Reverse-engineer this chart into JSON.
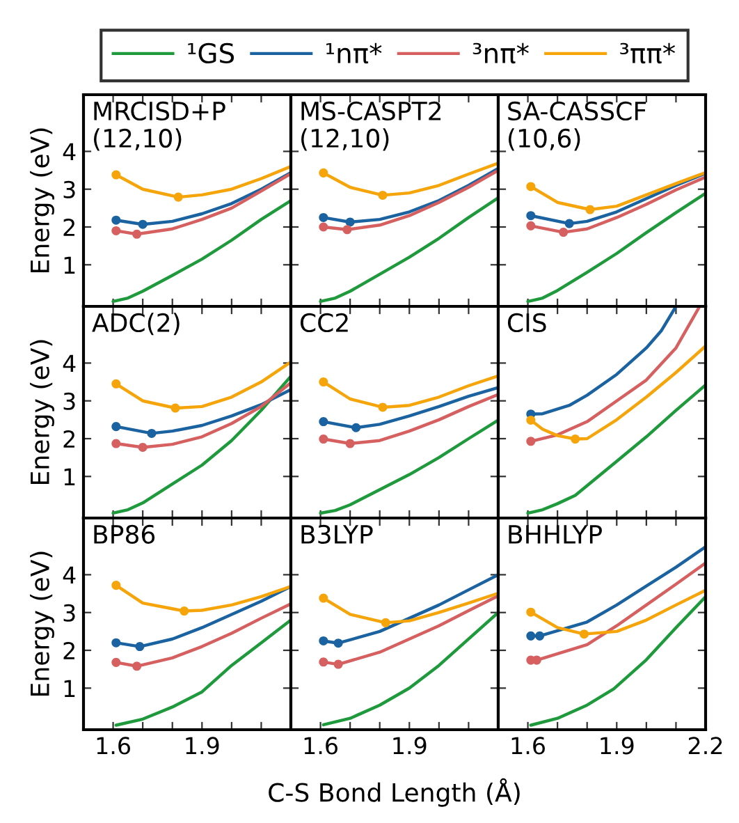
{
  "chart_data": [
    {
      "type": "line",
      "title": "MRCISD+P\n(12,10)",
      "ylabel": "Energy (eV)",
      "legend": "top",
      "xlim": [
        1.5,
        2.2
      ],
      "ylim": [
        -0.1,
        5.5
      ],
      "xticks": [
        1.6,
        {
          "value": 1.7,
          "label": null
        },
        {
          "value": 1.8,
          "label": null
        },
        1.9,
        {
          "value": 2.0,
          "label": null
        },
        {
          "value": 2.1,
          "label": null
        },
        {
          "value": 2.2,
          "label": null
        }
      ],
      "yticks": [
        1,
        2,
        3,
        4
      ],
      "tick_labels": "y",
      "series": [
        {
          "name": "¹GS",
          "color": "#1e9a3c",
          "x": [
            1.6,
            1.65,
            1.7,
            1.8,
            1.9,
            2.0,
            2.1,
            2.2
          ],
          "values": [
            0.03,
            0.12,
            0.3,
            0.72,
            1.15,
            1.65,
            2.2,
            2.7
          ]
        },
        {
          "name": "¹nπ*",
          "color": "#1a62a0",
          "x": [
            1.61,
            1.7,
            1.8,
            1.9,
            2.0,
            2.1,
            2.2
          ],
          "values": [
            2.18,
            2.07,
            2.15,
            2.35,
            2.62,
            3.0,
            3.44
          ]
        },
        {
          "name": "³nπ*",
          "color": "#d65f5f",
          "x": [
            1.61,
            1.68,
            1.8,
            1.9,
            2.0,
            2.1,
            2.2
          ],
          "values": [
            1.9,
            1.81,
            1.95,
            2.2,
            2.5,
            2.95,
            3.41
          ]
        },
        {
          "name": "³ππ*",
          "color": "#f5a50a",
          "x": [
            1.61,
            1.7,
            1.82,
            1.9,
            2.0,
            2.1,
            2.2
          ],
          "values": [
            3.38,
            3.0,
            2.79,
            2.85,
            3.0,
            3.28,
            3.6
          ]
        },
        {
          "type": "scatter",
          "color": "#1a62a0",
          "x": [
            1.61,
            1.7
          ],
          "values": [
            2.18,
            2.07
          ]
        },
        {
          "type": "scatter",
          "color": "#d65f5f",
          "x": [
            1.61,
            1.68
          ],
          "values": [
            1.9,
            1.81
          ]
        },
        {
          "type": "scatter",
          "color": "#f5a50a",
          "x": [
            1.61,
            1.82
          ],
          "values": [
            3.38,
            2.79
          ]
        }
      ]
    },
    {
      "type": "line",
      "title": "MS-CASPT2\n(12,10)",
      "xlim": [
        1.5,
        2.2
      ],
      "ylim": [
        -0.1,
        5.5
      ],
      "xticks": [
        1.6,
        {
          "value": 1.7,
          "label": null
        },
        {
          "value": 1.8,
          "label": null
        },
        1.9,
        {
          "value": 2.0,
          "label": null
        },
        {
          "value": 2.1,
          "label": null
        },
        {
          "value": 2.2,
          "label": null
        }
      ],
      "yticks": [
        1,
        2,
        3,
        4
      ],
      "tick_labels": false,
      "series": [
        {
          "color": "#1e9a3c",
          "x": [
            1.6,
            1.65,
            1.7,
            1.8,
            1.9,
            2.0,
            2.1,
            2.2
          ],
          "values": [
            0.03,
            0.12,
            0.3,
            0.75,
            1.2,
            1.7,
            2.25,
            2.77
          ]
        },
        {
          "color": "#1a62a0",
          "x": [
            1.61,
            1.7,
            1.8,
            1.9,
            2.0,
            2.1,
            2.2
          ],
          "values": [
            2.25,
            2.13,
            2.2,
            2.4,
            2.7,
            3.1,
            3.55
          ]
        },
        {
          "color": "#d65f5f",
          "x": [
            1.61,
            1.69,
            1.8,
            1.9,
            2.0,
            2.1,
            2.2
          ],
          "values": [
            2.0,
            1.93,
            2.05,
            2.3,
            2.65,
            3.05,
            3.5
          ]
        },
        {
          "color": "#f5a50a",
          "x": [
            1.61,
            1.7,
            1.81,
            1.9,
            2.0,
            2.1,
            2.2
          ],
          "values": [
            3.43,
            3.05,
            2.84,
            2.9,
            3.1,
            3.4,
            3.69
          ]
        },
        {
          "type": "scatter",
          "color": "#1a62a0",
          "x": [
            1.61,
            1.7
          ],
          "values": [
            2.25,
            2.13
          ]
        },
        {
          "type": "scatter",
          "color": "#d65f5f",
          "x": [
            1.61,
            1.69
          ],
          "values": [
            2.0,
            1.93
          ]
        },
        {
          "type": "scatter",
          "color": "#f5a50a",
          "x": [
            1.61,
            1.81
          ],
          "values": [
            3.43,
            2.84
          ]
        }
      ]
    },
    {
      "type": "line",
      "title": "SA-CASSCF\n(10,6)",
      "xlim": [
        1.5,
        2.2
      ],
      "ylim": [
        -0.1,
        5.5
      ],
      "xticks": [
        1.6,
        {
          "value": 1.7,
          "label": null
        },
        {
          "value": 1.8,
          "label": null
        },
        1.9,
        {
          "value": 2.0,
          "label": null
        },
        {
          "value": 2.1,
          "label": null
        },
        {
          "value": 2.2,
          "label": null
        }
      ],
      "yticks": [
        1,
        2,
        3,
        4
      ],
      "tick_labels": false,
      "series": [
        {
          "color": "#1e9a3c",
          "x": [
            1.6,
            1.65,
            1.7,
            1.8,
            1.9,
            2.0,
            2.1,
            2.2
          ],
          "values": [
            0.03,
            0.12,
            0.32,
            0.8,
            1.3,
            1.85,
            2.38,
            2.89
          ]
        },
        {
          "color": "#1a62a0",
          "x": [
            1.61,
            1.74,
            1.8,
            1.9,
            2.0,
            2.1,
            2.2
          ],
          "values": [
            2.3,
            2.09,
            2.15,
            2.4,
            2.75,
            3.1,
            3.42
          ]
        },
        {
          "color": "#d65f5f",
          "x": [
            1.61,
            1.72,
            1.8,
            1.9,
            2.0,
            2.1,
            2.2
          ],
          "values": [
            2.03,
            1.86,
            1.95,
            2.25,
            2.6,
            2.98,
            3.32
          ]
        },
        {
          "color": "#f5a50a",
          "x": [
            1.61,
            1.7,
            1.81,
            1.9,
            2.0,
            2.1,
            2.2
          ],
          "values": [
            3.07,
            2.65,
            2.46,
            2.55,
            2.85,
            3.15,
            3.44
          ]
        },
        {
          "type": "scatter",
          "color": "#1a62a0",
          "x": [
            1.61,
            1.74
          ],
          "values": [
            2.3,
            2.09
          ]
        },
        {
          "type": "scatter",
          "color": "#d65f5f",
          "x": [
            1.61,
            1.72
          ],
          "values": [
            2.03,
            1.86
          ]
        },
        {
          "type": "scatter",
          "color": "#f5a50a",
          "x": [
            1.61,
            1.81
          ],
          "values": [
            3.07,
            2.46
          ]
        }
      ]
    },
    {
      "type": "line",
      "title": "ADC(2)",
      "ylabel": "Energy (eV)",
      "xlim": [
        1.5,
        2.2
      ],
      "ylim": [
        -0.1,
        5.5
      ],
      "xticks": [
        1.6,
        {
          "value": 1.7,
          "label": null
        },
        {
          "value": 1.8,
          "label": null
        },
        1.9,
        {
          "value": 2.0,
          "label": null
        },
        {
          "value": 2.1,
          "label": null
        },
        {
          "value": 2.2,
          "label": null
        }
      ],
      "yticks": [
        1,
        2,
        3,
        4
      ],
      "tick_labels": "y",
      "series": [
        {
          "color": "#1e9a3c",
          "x": [
            1.6,
            1.65,
            1.7,
            1.8,
            1.9,
            2.0,
            2.1,
            2.2
          ],
          "values": [
            0.03,
            0.12,
            0.3,
            0.8,
            1.3,
            1.95,
            2.75,
            3.65
          ]
        },
        {
          "color": "#1a62a0",
          "x": [
            1.61,
            1.73,
            1.8,
            1.9,
            2.0,
            2.1,
            2.2
          ],
          "values": [
            2.32,
            2.14,
            2.2,
            2.35,
            2.6,
            2.9,
            3.3
          ]
        },
        {
          "color": "#d65f5f",
          "x": [
            1.61,
            1.7,
            1.8,
            1.9,
            2.0,
            2.1,
            2.2
          ],
          "values": [
            1.87,
            1.77,
            1.85,
            2.05,
            2.4,
            2.85,
            3.48
          ]
        },
        {
          "color": "#f5a50a",
          "x": [
            1.61,
            1.7,
            1.81,
            1.9,
            2.0,
            2.1,
            2.2
          ],
          "values": [
            3.45,
            3.0,
            2.81,
            2.85,
            3.1,
            3.5,
            4.03
          ]
        },
        {
          "type": "scatter",
          "color": "#1a62a0",
          "x": [
            1.61,
            1.73
          ],
          "values": [
            2.32,
            2.14
          ]
        },
        {
          "type": "scatter",
          "color": "#d65f5f",
          "x": [
            1.61,
            1.7
          ],
          "values": [
            1.87,
            1.77
          ]
        },
        {
          "type": "scatter",
          "color": "#f5a50a",
          "x": [
            1.61,
            1.81
          ],
          "values": [
            3.45,
            2.81
          ]
        }
      ]
    },
    {
      "type": "line",
      "title": "CC2",
      "xlim": [
        1.5,
        2.2
      ],
      "ylim": [
        -0.1,
        5.5
      ],
      "xticks": [
        1.6,
        {
          "value": 1.7,
          "label": null
        },
        {
          "value": 1.8,
          "label": null
        },
        1.9,
        {
          "value": 2.0,
          "label": null
        },
        {
          "value": 2.1,
          "label": null
        },
        {
          "value": 2.2,
          "label": null
        }
      ],
      "yticks": [
        1,
        2,
        3,
        4
      ],
      "tick_labels": false,
      "series": [
        {
          "color": "#1e9a3c",
          "x": [
            1.6,
            1.65,
            1.7,
            1.8,
            1.9,
            2.0,
            2.1,
            2.2
          ],
          "values": [
            0.03,
            0.1,
            0.25,
            0.65,
            1.05,
            1.5,
            2.0,
            2.49
          ]
        },
        {
          "color": "#1a62a0",
          "x": [
            1.61,
            1.72,
            1.8,
            1.9,
            2.0,
            2.1,
            2.2
          ],
          "values": [
            2.45,
            2.29,
            2.38,
            2.6,
            2.85,
            3.12,
            3.35
          ]
        },
        {
          "color": "#d65f5f",
          "x": [
            1.61,
            1.7,
            1.8,
            1.9,
            2.0,
            2.1,
            2.2
          ],
          "values": [
            1.99,
            1.87,
            1.95,
            2.2,
            2.5,
            2.85,
            3.17
          ]
        },
        {
          "color": "#f5a50a",
          "x": [
            1.61,
            1.7,
            1.81,
            1.9,
            2.0,
            2.1,
            2.2
          ],
          "values": [
            3.5,
            3.05,
            2.83,
            2.88,
            3.1,
            3.4,
            3.66
          ]
        },
        {
          "type": "scatter",
          "color": "#1a62a0",
          "x": [
            1.61,
            1.72
          ],
          "values": [
            2.45,
            2.29
          ]
        },
        {
          "type": "scatter",
          "color": "#d65f5f",
          "x": [
            1.61,
            1.7
          ],
          "values": [
            1.99,
            1.87
          ]
        },
        {
          "type": "scatter",
          "color": "#f5a50a",
          "x": [
            1.61,
            1.81
          ],
          "values": [
            3.5,
            2.83
          ]
        }
      ]
    },
    {
      "type": "line",
      "title": "CIS",
      "xlim": [
        1.5,
        2.2
      ],
      "ylim": [
        -0.1,
        5.5
      ],
      "xticks": [
        1.6,
        {
          "value": 1.7,
          "label": null
        },
        {
          "value": 1.8,
          "label": null
        },
        1.9,
        {
          "value": 2.0,
          "label": null
        },
        {
          "value": 2.1,
          "label": null
        },
        {
          "value": 2.2,
          "label": null
        }
      ],
      "yticks": [
        1,
        2,
        3,
        4
      ],
      "tick_labels": false,
      "series": [
        {
          "color": "#1e9a3c",
          "x": [
            1.6,
            1.65,
            1.7,
            1.76,
            1.9,
            2.0,
            2.1,
            2.2
          ],
          "values": [
            0.03,
            0.12,
            0.28,
            0.5,
            1.4,
            2.05,
            2.75,
            3.42
          ]
        },
        {
          "color": "#1a62a0",
          "x": [
            1.61,
            1.65,
            1.74,
            1.8,
            1.9,
            2.0,
            2.05,
            2.1
          ],
          "values": [
            2.65,
            2.66,
            2.88,
            3.15,
            3.7,
            4.4,
            4.85,
            5.5
          ]
        },
        {
          "color": "#d65f5f",
          "x": [
            1.61,
            1.7,
            1.8,
            1.9,
            2.0,
            2.1,
            2.18
          ],
          "values": [
            1.93,
            2.1,
            2.45,
            3.0,
            3.55,
            4.4,
            5.5
          ]
        },
        {
          "color": "#f5a50a",
          "x": [
            1.61,
            1.65,
            1.7,
            1.76,
            1.8,
            1.9,
            2.0,
            2.1,
            2.2
          ],
          "values": [
            2.49,
            2.25,
            2.08,
            1.99,
            2.0,
            2.5,
            3.1,
            3.75,
            4.45
          ]
        },
        {
          "type": "scatter",
          "color": "#1a62a0",
          "x": [
            1.61
          ],
          "values": [
            2.65
          ]
        },
        {
          "type": "scatter",
          "color": "#d65f5f",
          "x": [
            1.61
          ],
          "values": [
            1.93
          ]
        },
        {
          "type": "scatter",
          "color": "#f5a50a",
          "x": [
            1.61,
            1.76
          ],
          "values": [
            2.49,
            1.99
          ]
        }
      ]
    },
    {
      "type": "line",
      "title": "BP86",
      "ylabel": "Energy (eV)",
      "xlim": [
        1.5,
        2.2
      ],
      "ylim": [
        -0.1,
        5.5
      ],
      "xticks": [
        1.6,
        {
          "value": 1.7,
          "label": null
        },
        {
          "value": 1.8,
          "label": null
        },
        1.9,
        {
          "value": 2.0,
          "label": null
        },
        {
          "value": 2.1,
          "label": null
        },
        {
          "value": 2.2,
          "label": null
        }
      ],
      "yticks": [
        1,
        2,
        3,
        4
      ],
      "series": [
        {
          "color": "#1e9a3c",
          "x": [
            1.61,
            1.7,
            1.8,
            1.9,
            2.0,
            2.1,
            2.2
          ],
          "values": [
            0.02,
            0.18,
            0.5,
            0.9,
            1.6,
            2.2,
            2.8
          ]
        },
        {
          "color": "#1a62a0",
          "x": [
            1.61,
            1.69,
            1.8,
            1.9,
            2.0,
            2.1,
            2.2
          ],
          "values": [
            2.2,
            2.1,
            2.3,
            2.6,
            2.95,
            3.3,
            3.69
          ]
        },
        {
          "color": "#d65f5f",
          "x": [
            1.61,
            1.68,
            1.8,
            1.9,
            2.0,
            2.1,
            2.2
          ],
          "values": [
            1.68,
            1.58,
            1.8,
            2.1,
            2.45,
            2.85,
            3.23
          ]
        },
        {
          "color": "#f5a50a",
          "x": [
            1.61,
            1.7,
            1.84,
            1.9,
            2.0,
            2.1,
            2.2
          ],
          "values": [
            3.72,
            3.25,
            3.04,
            3.06,
            3.2,
            3.42,
            3.69
          ]
        },
        {
          "type": "scatter",
          "color": "#1a62a0",
          "x": [
            1.61,
            1.69
          ],
          "values": [
            2.2,
            2.1
          ]
        },
        {
          "type": "scatter",
          "color": "#d65f5f",
          "x": [
            1.61,
            1.68
          ],
          "values": [
            1.68,
            1.58
          ]
        },
        {
          "type": "scatter",
          "color": "#f5a50a",
          "x": [
            1.61,
            1.84
          ],
          "values": [
            3.72,
            3.04
          ]
        }
      ]
    },
    {
      "type": "line",
      "title": "B3LYP",
      "xlabel": "C-S Bond Length (Å)",
      "xlim": [
        1.5,
        2.2
      ],
      "ylim": [
        -0.1,
        5.5
      ],
      "xticks": [
        1.6,
        {
          "value": 1.7,
          "label": null
        },
        {
          "value": 1.8,
          "label": null
        },
        1.9,
        {
          "value": 2.0,
          "label": null
        },
        {
          "value": 2.1,
          "label": null
        },
        {
          "value": 2.2,
          "label": null
        }
      ],
      "yticks": [
        1,
        2,
        3,
        4
      ],
      "tick_labels": "x",
      "series": [
        {
          "color": "#1e9a3c",
          "x": [
            1.61,
            1.7,
            1.8,
            1.9,
            2.0,
            2.1,
            2.2
          ],
          "values": [
            0.03,
            0.2,
            0.55,
            1.0,
            1.6,
            2.3,
            3.0
          ]
        },
        {
          "color": "#1a62a0",
          "x": [
            1.61,
            1.66,
            1.8,
            1.9,
            2.0,
            2.1,
            2.2
          ],
          "values": [
            2.25,
            2.19,
            2.5,
            2.85,
            3.2,
            3.6,
            4.0
          ]
        },
        {
          "color": "#d65f5f",
          "x": [
            1.61,
            1.66,
            1.8,
            1.9,
            2.0,
            2.1,
            2.2
          ],
          "values": [
            1.69,
            1.63,
            1.95,
            2.3,
            2.65,
            3.05,
            3.44
          ]
        },
        {
          "color": "#f5a50a",
          "x": [
            1.61,
            1.7,
            1.82,
            1.9,
            2.0,
            2.1,
            2.2
          ],
          "values": [
            3.38,
            2.95,
            2.73,
            2.78,
            3.0,
            3.25,
            3.51
          ]
        },
        {
          "type": "scatter",
          "color": "#1a62a0",
          "x": [
            1.61,
            1.66
          ],
          "values": [
            2.25,
            2.19
          ]
        },
        {
          "type": "scatter",
          "color": "#d65f5f",
          "x": [
            1.61,
            1.66
          ],
          "values": [
            1.69,
            1.63
          ]
        },
        {
          "type": "scatter",
          "color": "#f5a50a",
          "x": [
            1.61,
            1.82
          ],
          "values": [
            3.38,
            2.73
          ]
        }
      ]
    },
    {
      "type": "line",
      "title": "BHHLYP",
      "xlim": [
        1.5,
        2.2
      ],
      "ylim": [
        -0.1,
        5.5
      ],
      "xticks": [
        1.6,
        {
          "value": 1.7,
          "label": null
        },
        {
          "value": 1.8,
          "label": null
        },
        1.9,
        {
          "value": 2.0,
          "label": null
        },
        {
          "value": 2.1,
          "label": null
        },
        2.2
      ],
      "yticks": [
        1,
        2,
        3,
        4
      ],
      "tick_labels": "x",
      "series": [
        {
          "color": "#1e9a3c",
          "x": [
            1.61,
            1.7,
            1.8,
            1.89,
            2.0,
            2.1,
            2.2
          ],
          "values": [
            0.02,
            0.2,
            0.55,
            0.98,
            1.75,
            2.6,
            3.42
          ]
        },
        {
          "color": "#1a62a0",
          "x": [
            1.61,
            1.64,
            1.8,
            1.9,
            2.0,
            2.1,
            2.2
          ],
          "values": [
            2.38,
            2.38,
            2.75,
            3.2,
            3.7,
            4.2,
            4.74
          ]
        },
        {
          "color": "#d65f5f",
          "x": [
            1.61,
            1.63,
            1.8,
            1.9,
            2.0,
            2.1,
            2.2
          ],
          "values": [
            1.74,
            1.74,
            2.15,
            2.65,
            3.2,
            3.75,
            4.31
          ]
        },
        {
          "color": "#f5a50a",
          "x": [
            1.61,
            1.7,
            1.79,
            1.9,
            2.0,
            2.1,
            2.2
          ],
          "values": [
            3.01,
            2.6,
            2.43,
            2.5,
            2.8,
            3.2,
            3.59
          ]
        },
        {
          "type": "scatter",
          "color": "#1a62a0",
          "x": [
            1.61,
            1.64
          ],
          "values": [
            2.38,
            2.38
          ]
        },
        {
          "type": "scatter",
          "color": "#d65f5f",
          "x": [
            1.61,
            1.63
          ],
          "values": [
            1.74,
            1.74
          ]
        },
        {
          "type": "scatter",
          "color": "#f5a50a",
          "x": [
            1.61,
            1.79
          ],
          "values": [
            3.01,
            2.43
          ]
        }
      ]
    }
  ]
}
